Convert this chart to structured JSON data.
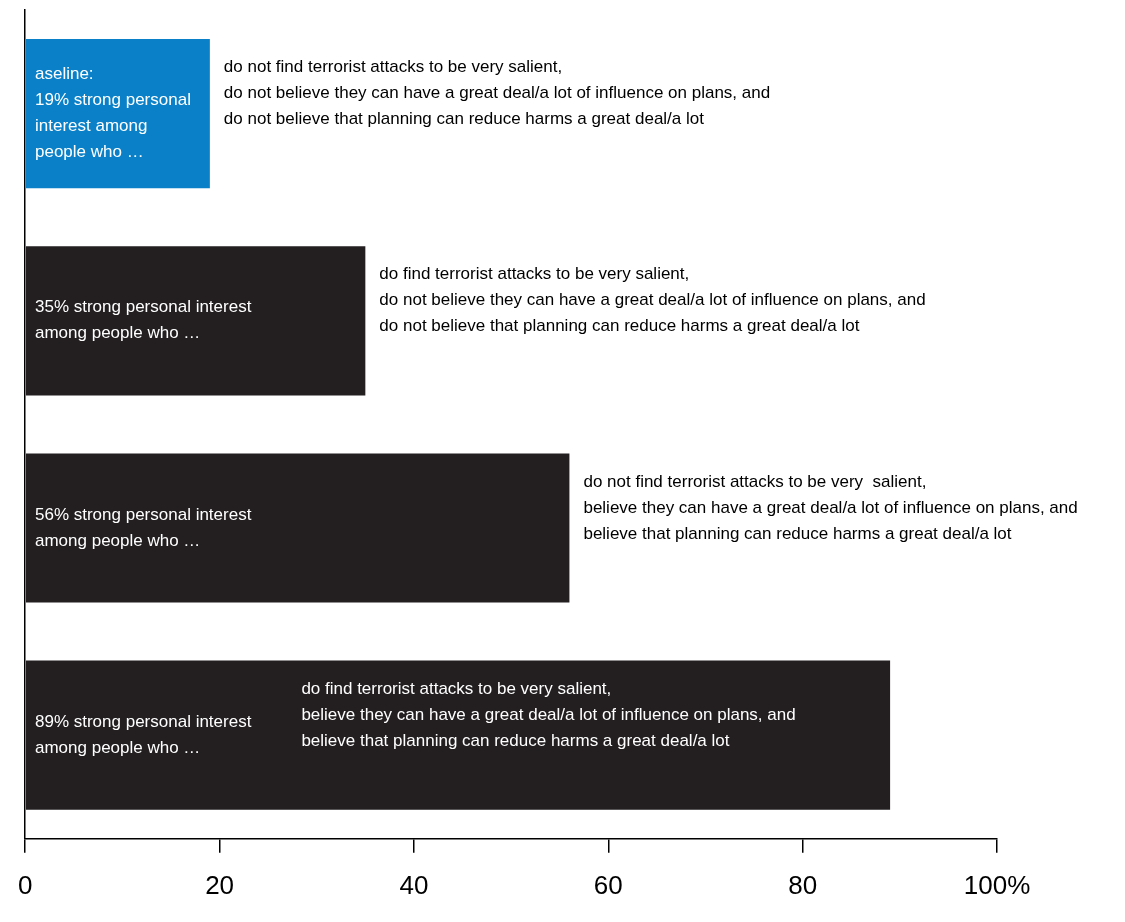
{
  "chart_data": {
    "type": "bar",
    "orientation": "horizontal",
    "categories": [
      null,
      null,
      null,
      null
    ],
    "values": [
      19,
      35,
      56,
      89
    ],
    "colors": [
      "#0a80c8",
      "#231f20",
      "#231f20",
      "#231f20"
    ],
    "value_labels": [
      "aseline:\n19% strong personal interest among people who …",
      "35% strong personal interest\namong people who …",
      "56% strong personal interest\namong people who …",
      "89% strong personal interest\namong people who …"
    ],
    "annotations": [
      "do not find terrorist attacks to be very salient,\ndo not believe they can have a great deal/a lot of influence on plans, and\ndo not believe that planning can reduce harms a great deal/a lot",
      "do find terrorist attacks to be very salient,\ndo not believe they can have a great deal/a lot of influence on plans, and\ndo not believe that planning can reduce harms a great deal/a lot",
      "do not find terrorist attacks to be very  salient,\nbelieve they can have a great deal/a lot of influence on plans, and\nbelieve that planning can reduce harms a great deal/a lot",
      "do find terrorist attacks to be very salient,\nbelieve they can have a great deal/a lot of influence on plans, and\nbelieve that planning can reduce harms a great deal/a lot"
    ],
    "xlim": [
      0,
      100
    ],
    "xticks": [
      0,
      20,
      40,
      60,
      80,
      {
        "value": 100,
        "label": "100%"
      }
    ],
    "grid": false,
    "legend": false
  }
}
